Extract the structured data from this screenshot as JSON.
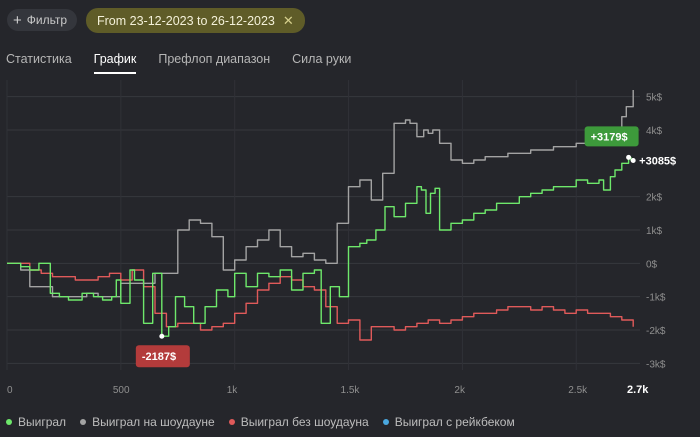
{
  "toolbar": {
    "filter_label": "Фильтр",
    "date_range": "From 23-12-2023 to 26-12-2023"
  },
  "tabs": [
    {
      "label": "Статистика"
    },
    {
      "label": "График"
    },
    {
      "label": "Префлоп диапазон"
    },
    {
      "label": "Сила руки"
    }
  ],
  "colors": {
    "won": "#6ee86b",
    "showdown": "#a3a3a3",
    "non_showdown": "#e05a5a",
    "rakeback": "#4aa8e0",
    "accent": "#5f5c28"
  },
  "chart_data": {
    "type": "line",
    "xlim": [
      0,
      2780
    ],
    "ylim": [
      -3200,
      5500
    ],
    "x_ticks": [
      0,
      500,
      1000,
      1500,
      2000,
      2500
    ],
    "x_tick_labels": [
      "0",
      "500",
      "1k",
      "1.5k",
      "2k",
      "2.5k"
    ],
    "x_end_label": "2.7k",
    "y_ticks": [
      5000,
      4000,
      2000,
      1000,
      0,
      -1000,
      -2000,
      -3000
    ],
    "y_tick_labels": [
      "5k$",
      "4k$",
      "2k$",
      "1k$",
      "0$",
      "-1k$",
      "-2k$",
      "-3k$"
    ],
    "grid": true,
    "annotations": {
      "max_label": "+3179$",
      "min_label": "-2187$",
      "final_label": "+3085$"
    },
    "series": [
      {
        "name": "Выиграл",
        "x": [
          0,
          60,
          100,
          140,
          190,
          230,
          270,
          330,
          380,
          420,
          460,
          480,
          500,
          540,
          560,
          600,
          640,
          680,
          710,
          740,
          780,
          820,
          870,
          920,
          970,
          1000,
          1050,
          1100,
          1150,
          1200,
          1250,
          1300,
          1350,
          1380,
          1420,
          1460,
          1500,
          1550,
          1580,
          1620,
          1660,
          1700,
          1750,
          1800,
          1820,
          1840,
          1860,
          1880,
          1900,
          1950,
          2000,
          2050,
          2100,
          2150,
          2200,
          2250,
          2300,
          2350,
          2400,
          2450,
          2500,
          2550,
          2600,
          2620,
          2650,
          2670,
          2700,
          2730,
          2740,
          2750
        ],
        "values": [
          0,
          -100,
          -200,
          0,
          -900,
          -1000,
          -1100,
          -900,
          -1000,
          -1100,
          -1000,
          -500,
          -1200,
          -200,
          -500,
          -1800,
          -300,
          -2187,
          -1900,
          -1000,
          -1300,
          -1800,
          -1300,
          -800,
          -1000,
          -300,
          -700,
          -300,
          -400,
          -200,
          -800,
          -300,
          -200,
          -1800,
          -700,
          -1000,
          500,
          600,
          700,
          1000,
          1700,
          1400,
          1800,
          2300,
          2200,
          1500,
          2100,
          2250,
          1000,
          1200,
          1300,
          1500,
          1600,
          1800,
          1800,
          2000,
          2100,
          2200,
          2300,
          2300,
          2500,
          2400,
          2500,
          2200,
          2600,
          2800,
          3000,
          3179,
          3100,
          3085
        ]
      },
      {
        "name": "Выиграл на шоудауне",
        "x": [
          0,
          60,
          100,
          150,
          200,
          250,
          300,
          350,
          400,
          450,
          500,
          550,
          600,
          650,
          700,
          750,
          800,
          850,
          900,
          950,
          1000,
          1050,
          1100,
          1150,
          1200,
          1250,
          1300,
          1350,
          1400,
          1450,
          1500,
          1550,
          1600,
          1650,
          1700,
          1750,
          1770,
          1800,
          1830,
          1850,
          1870,
          1900,
          1950,
          2000,
          2050,
          2100,
          2150,
          2200,
          2250,
          2300,
          2350,
          2400,
          2450,
          2500,
          2550,
          2600,
          2650,
          2700,
          2720,
          2750
        ],
        "values": [
          0,
          -200,
          -700,
          -700,
          -1000,
          -1000,
          -1000,
          -900,
          -1000,
          -1000,
          -600,
          -600,
          -600,
          -300,
          -300,
          1000,
          1300,
          1200,
          800,
          -200,
          100,
          500,
          700,
          1000,
          500,
          200,
          300,
          100,
          0,
          1200,
          2300,
          2500,
          1900,
          2700,
          4200,
          4300,
          4200,
          3800,
          4000,
          3900,
          4000,
          3600,
          3100,
          3000,
          3100,
          3200,
          3200,
          3300,
          3300,
          3400,
          3400,
          3500,
          3500,
          3600,
          3600,
          3600,
          4000,
          4400,
          4700,
          5200
        ]
      },
      {
        "name": "Выиграл без шоудауна",
        "x": [
          0,
          100,
          150,
          200,
          250,
          300,
          350,
          400,
          450,
          500,
          550,
          600,
          650,
          700,
          750,
          800,
          850,
          900,
          950,
          1000,
          1050,
          1100,
          1150,
          1200,
          1250,
          1300,
          1350,
          1400,
          1450,
          1500,
          1550,
          1600,
          1650,
          1700,
          1750,
          1800,
          1850,
          1900,
          1950,
          2000,
          2050,
          2100,
          2150,
          2200,
          2250,
          2300,
          2350,
          2400,
          2450,
          2500,
          2550,
          2600,
          2650,
          2700,
          2750
        ],
        "values": [
          0,
          -200,
          -300,
          -400,
          -400,
          -500,
          -500,
          -400,
          -300,
          -500,
          -200,
          -700,
          -1500,
          -1900,
          -1800,
          -1800,
          -2000,
          -1900,
          -1800,
          -1500,
          -1200,
          -800,
          -600,
          -400,
          -500,
          -700,
          -800,
          -1300,
          -1800,
          -1700,
          -2300,
          -1900,
          -1900,
          -2000,
          -1900,
          -1800,
          -1700,
          -1800,
          -1700,
          -1600,
          -1500,
          -1500,
          -1400,
          -1300,
          -1300,
          -1400,
          -1300,
          -1400,
          -1500,
          -1400,
          -1500,
          -1500,
          -1600,
          -1700,
          -1900
        ]
      },
      {
        "name": "Выиграл с рейкбеком",
        "x": [],
        "values": []
      }
    ]
  }
}
